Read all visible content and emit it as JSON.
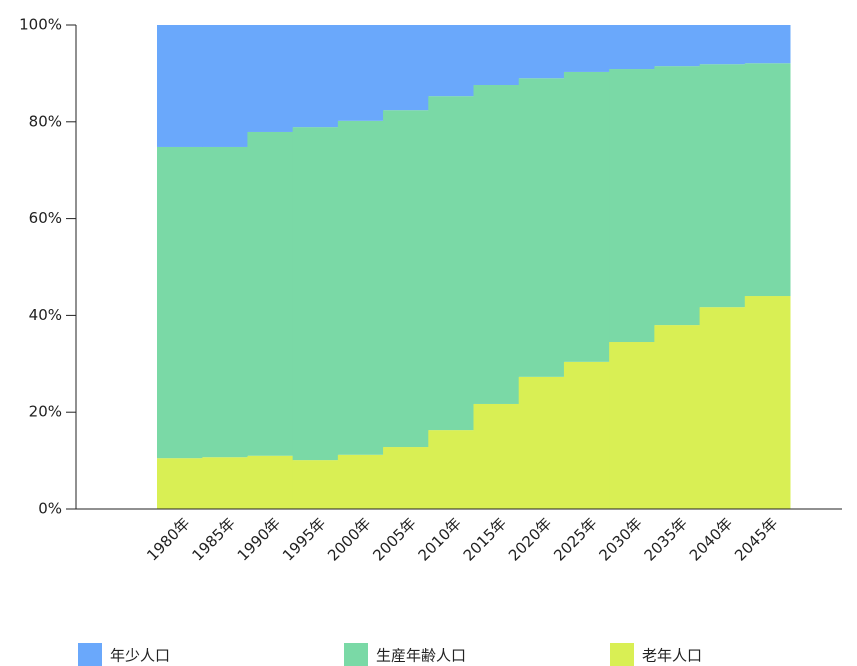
{
  "chart_data": {
    "type": "stacked_step_area",
    "categories": [
      "1980年",
      "1985年",
      "1990年",
      "1995年",
      "2000年",
      "2005年",
      "2010年",
      "2015年",
      "2020年",
      "2025年",
      "2030年",
      "2035年",
      "2040年",
      "2045年"
    ],
    "series": [
      {
        "name": "年少人口",
        "color": "#6aa8fb",
        "values": [
          25.2,
          25.2,
          22.1,
          21.1,
          19.8,
          17.6,
          14.7,
          12.4,
          11.0,
          9.7,
          9.1,
          8.5,
          8.1,
          7.9
        ]
      },
      {
        "name": "生産年齢人口",
        "color": "#7ad9a6",
        "values": [
          64.3,
          64.1,
          66.9,
          68.8,
          69.0,
          69.6,
          69.0,
          65.9,
          61.7,
          59.9,
          56.4,
          53.5,
          50.2,
          48.1
        ]
      },
      {
        "name": "老年人口",
        "color": "#d9ef54",
        "values": [
          10.5,
          10.7,
          11.0,
          10.1,
          11.2,
          12.8,
          16.3,
          21.7,
          27.3,
          30.4,
          34.5,
          38.0,
          41.7,
          44.0
        ]
      }
    ],
    "ylim": [
      0,
      100
    ],
    "yticks": [
      {
        "value": 0,
        "label": "0%"
      },
      {
        "value": 20,
        "label": "20%"
      },
      {
        "value": 40,
        "label": "40%"
      },
      {
        "value": 60,
        "label": "60%"
      },
      {
        "value": 80,
        "label": "80%"
      },
      {
        "value": 100,
        "label": "100%"
      }
    ],
    "legend": "bottom"
  }
}
